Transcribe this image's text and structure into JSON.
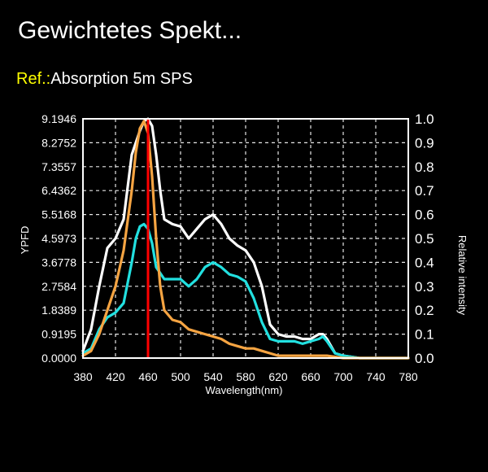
{
  "header": {
    "title": "Gewichtetes Spekt..."
  },
  "reference": {
    "label": "Ref.:",
    "value": "Absorption 5m SPS"
  },
  "colors": {
    "background": "#000000",
    "white_series": "#ffffff",
    "cyan_series": "#22e0e0",
    "orange_series": "#f5a442",
    "marker_line": "#ff0000",
    "ref_label": "#ffff00",
    "grid": "#ffffff"
  },
  "chart_data": {
    "type": "line",
    "xlabel": "Wavelength(nm)",
    "ylabel_left": "YPFD",
    "ylabel_right": "Relative intensity",
    "xlim": [
      380,
      780
    ],
    "ylim_left": [
      0,
      9.1946
    ],
    "ylim_right": [
      0,
      1.0
    ],
    "x_ticks": [
      "380",
      "420",
      "460",
      "500",
      "540",
      "580",
      "620",
      "660",
      "700",
      "740",
      "780"
    ],
    "y_left_ticks": [
      "0.0000",
      "0.9195",
      "1.8389",
      "2.7584",
      "3.6778",
      "4.5973",
      "5.5168",
      "6.4362",
      "7.3557",
      "8.2752",
      "9.1946"
    ],
    "y_right_ticks": [
      "0.0",
      "0.1",
      "0.2",
      "0.3",
      "0.4",
      "0.5",
      "0.6",
      "0.7",
      "0.8",
      "0.9",
      "1.0"
    ],
    "grid": true,
    "marker_x": 460,
    "series": [
      {
        "color": "#ffffff",
        "points": [
          [
            380,
            0.03
          ],
          [
            390,
            0.12
          ],
          [
            400,
            0.3
          ],
          [
            410,
            0.46
          ],
          [
            420,
            0.5
          ],
          [
            430,
            0.58
          ],
          [
            440,
            0.85
          ],
          [
            450,
            0.95
          ],
          [
            455,
            0.99
          ],
          [
            460,
            1.0
          ],
          [
            465,
            0.97
          ],
          [
            470,
            0.85
          ],
          [
            475,
            0.7
          ],
          [
            480,
            0.58
          ],
          [
            490,
            0.56
          ],
          [
            500,
            0.55
          ],
          [
            510,
            0.5
          ],
          [
            520,
            0.54
          ],
          [
            530,
            0.58
          ],
          [
            540,
            0.6
          ],
          [
            550,
            0.56
          ],
          [
            560,
            0.5
          ],
          [
            570,
            0.47
          ],
          [
            580,
            0.45
          ],
          [
            590,
            0.4
          ],
          [
            600,
            0.3
          ],
          [
            610,
            0.14
          ],
          [
            620,
            0.1
          ],
          [
            630,
            0.09
          ],
          [
            640,
            0.09
          ],
          [
            650,
            0.08
          ],
          [
            660,
            0.08
          ],
          [
            670,
            0.1
          ],
          [
            675,
            0.1
          ],
          [
            680,
            0.08
          ],
          [
            690,
            0.02
          ],
          [
            700,
            0.01
          ],
          [
            720,
            0.0
          ],
          [
            740,
            0.0
          ],
          [
            760,
            0.0
          ],
          [
            780,
            0.0
          ]
        ]
      },
      {
        "color": "#22e0e0",
        "points": [
          [
            380,
            0.02
          ],
          [
            390,
            0.04
          ],
          [
            400,
            0.12
          ],
          [
            410,
            0.17
          ],
          [
            420,
            0.19
          ],
          [
            430,
            0.23
          ],
          [
            440,
            0.4
          ],
          [
            445,
            0.5
          ],
          [
            450,
            0.55
          ],
          [
            455,
            0.56
          ],
          [
            460,
            0.54
          ],
          [
            465,
            0.48
          ],
          [
            470,
            0.38
          ],
          [
            480,
            0.33
          ],
          [
            490,
            0.33
          ],
          [
            500,
            0.33
          ],
          [
            510,
            0.3
          ],
          [
            520,
            0.33
          ],
          [
            530,
            0.38
          ],
          [
            540,
            0.4
          ],
          [
            550,
            0.38
          ],
          [
            560,
            0.35
          ],
          [
            570,
            0.34
          ],
          [
            580,
            0.32
          ],
          [
            590,
            0.25
          ],
          [
            600,
            0.15
          ],
          [
            610,
            0.08
          ],
          [
            620,
            0.07
          ],
          [
            630,
            0.07
          ],
          [
            640,
            0.07
          ],
          [
            650,
            0.06
          ],
          [
            660,
            0.07
          ],
          [
            670,
            0.08
          ],
          [
            675,
            0.09
          ],
          [
            680,
            0.07
          ],
          [
            690,
            0.02
          ],
          [
            700,
            0.01
          ],
          [
            720,
            0.0
          ],
          [
            740,
            0.0
          ],
          [
            760,
            0.0
          ],
          [
            780,
            0.0
          ]
        ]
      },
      {
        "color": "#f5a442",
        "points": [
          [
            380,
            0.01
          ],
          [
            390,
            0.03
          ],
          [
            400,
            0.1
          ],
          [
            410,
            0.2
          ],
          [
            420,
            0.3
          ],
          [
            430,
            0.45
          ],
          [
            440,
            0.7
          ],
          [
            445,
            0.86
          ],
          [
            450,
            0.96
          ],
          [
            455,
            0.99
          ],
          [
            460,
            0.94
          ],
          [
            465,
            0.76
          ],
          [
            470,
            0.5
          ],
          [
            475,
            0.3
          ],
          [
            480,
            0.2
          ],
          [
            490,
            0.16
          ],
          [
            500,
            0.15
          ],
          [
            510,
            0.12
          ],
          [
            520,
            0.11
          ],
          [
            530,
            0.1
          ],
          [
            540,
            0.09
          ],
          [
            550,
            0.08
          ],
          [
            560,
            0.06
          ],
          [
            570,
            0.05
          ],
          [
            580,
            0.04
          ],
          [
            590,
            0.04
          ],
          [
            600,
            0.03
          ],
          [
            610,
            0.02
          ],
          [
            620,
            0.01
          ],
          [
            640,
            0.01
          ],
          [
            660,
            0.01
          ],
          [
            680,
            0.01
          ],
          [
            700,
            0.0
          ],
          [
            740,
            0.0
          ],
          [
            780,
            0.0
          ]
        ]
      }
    ]
  }
}
